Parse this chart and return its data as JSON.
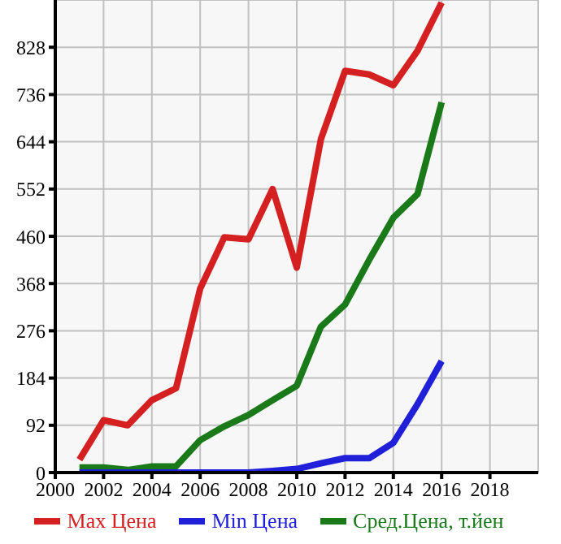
{
  "chart_data": {
    "type": "line",
    "x": [
      2001,
      2002,
      2003,
      2004,
      2005,
      2006,
      2007,
      2008,
      2009,
      2010,
      2011,
      2012,
      2013,
      2014,
      2015,
      2016
    ],
    "series": [
      {
        "name": "Max Цена",
        "color": "#d42020",
        "values": [
          25,
          102,
          92,
          141,
          164,
          358,
          458,
          454,
          552,
          399,
          649,
          782,
          775,
          754,
          821,
          915
        ]
      },
      {
        "name": "Min Цена",
        "color": "#2020d8",
        "values": [
          0,
          0,
          0,
          0,
          0,
          0,
          0,
          0,
          3,
          7,
          18,
          28,
          28,
          58,
          133,
          217
        ]
      },
      {
        "name": "Сред.Цена, т.йен",
        "color": "#1a7a1a",
        "values": [
          10,
          10,
          5,
          12,
          12,
          63,
          90,
          112,
          141,
          169,
          284,
          327,
          414,
          496,
          542,
          721
        ]
      }
    ],
    "xlim": [
      2000,
      2020
    ],
    "xticks": [
      2000,
      2002,
      2004,
      2006,
      2008,
      2010,
      2012,
      2014,
      2016,
      2018
    ],
    "ylim": [
      0,
      920
    ],
    "yticks": [
      0,
      92,
      184,
      276,
      368,
      460,
      552,
      644,
      736,
      828
    ],
    "grid": true,
    "legend": "bottom",
    "marker": "none",
    "line_style": "solid"
  }
}
